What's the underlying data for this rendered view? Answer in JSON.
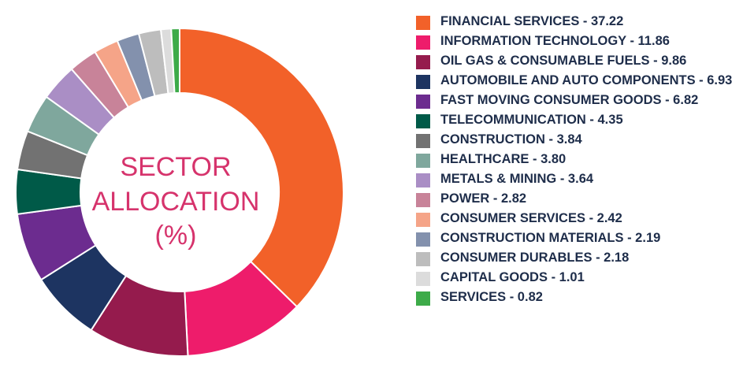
{
  "center_label": {
    "line1": "SECTOR",
    "line2": "ALLOCATION",
    "line3": "(%)"
  },
  "chart_data": {
    "type": "pie",
    "title": "SECTOR ALLOCATION (%)",
    "series": [
      {
        "label": "FINANCIAL SERVICES - 37.22",
        "value": 37.22,
        "color": "#f26129"
      },
      {
        "label": "INFORMATION TECHNOLOGY - 11.86",
        "value": 11.86,
        "color": "#ee1c6b"
      },
      {
        "label": "OIL GAS & CONSUMABLE FUELS - 9.86",
        "value": 9.86,
        "color": "#951b4d"
      },
      {
        "label": "AUTOMOBILE AND AUTO COMPONENTS - 6.93",
        "value": 6.93,
        "color": "#1d3461"
      },
      {
        "label": "FAST MOVING CONSUMER GOODS - 6.82",
        "value": 6.82,
        "color": "#6c2c8f"
      },
      {
        "label": "TELECOMMUNICATION - 4.35",
        "value": 4.35,
        "color": "#005a48"
      },
      {
        "label": "CONSTRUCTION - 3.84",
        "value": 3.84,
        "color": "#727272"
      },
      {
        "label": "HEALTHCARE - 3.80",
        "value": 3.8,
        "color": "#7fa79d"
      },
      {
        "label": "METALS & MINING - 3.64",
        "value": 3.64,
        "color": "#aa8ec5"
      },
      {
        "label": "POWER - 2.82",
        "value": 2.82,
        "color": "#c88399"
      },
      {
        "label": "CONSUMER SERVICES - 2.42",
        "value": 2.42,
        "color": "#f5a488"
      },
      {
        "label": "CONSTRUCTION MATERIALS - 2.19",
        "value": 2.19,
        "color": "#8391ad"
      },
      {
        "label": "CONSUMER DURABLES - 2.18",
        "value": 2.18,
        "color": "#bdbdbd"
      },
      {
        "label": "CAPITAL GOODS - 1.01",
        "value": 1.01,
        "color": "#dcdcdc"
      },
      {
        "label": "SERVICES - 0.82",
        "value": 0.82,
        "color": "#3dab49"
      }
    ],
    "legend_position": "right"
  }
}
